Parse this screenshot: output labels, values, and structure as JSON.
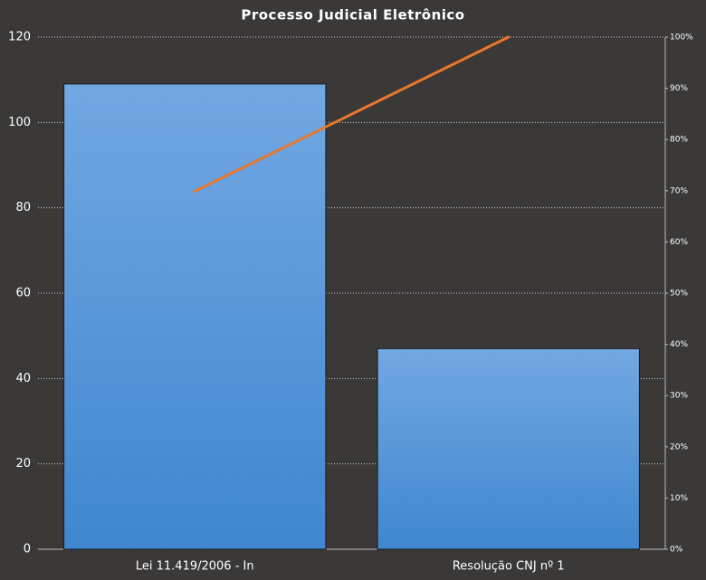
{
  "chart_data": {
    "type": "pareto",
    "title": "Processo Judicial Eletrônico",
    "categories": [
      "Lei 11.419/2006 - In",
      "Resolução CNJ nº 1"
    ],
    "series": [
      {
        "type": "bar",
        "color": "#4a90d9",
        "values": [
          109,
          47
        ]
      },
      {
        "type": "line",
        "color": "#e8772e",
        "axis": "y2",
        "values": [
          69.9,
          100
        ]
      }
    ],
    "ylim": [
      0,
      120
    ],
    "yticks": [
      0,
      20,
      40,
      60,
      80,
      100,
      120
    ],
    "y2lim": [
      0,
      100
    ],
    "y2ticks": [
      {
        "value": 0,
        "label": "0%"
      },
      {
        "value": 10,
        "label": "10%"
      },
      {
        "value": 20,
        "label": "20%"
      },
      {
        "value": 30,
        "label": "30%"
      },
      {
        "value": 40,
        "label": "40%"
      },
      {
        "value": 50,
        "label": "50%"
      },
      {
        "value": 60,
        "label": "60%"
      },
      {
        "value": 70,
        "label": "70%"
      },
      {
        "value": 80,
        "label": "80%"
      },
      {
        "value": 90,
        "label": "90%"
      },
      {
        "value": 100,
        "label": "100%"
      }
    ],
    "grid": true
  }
}
